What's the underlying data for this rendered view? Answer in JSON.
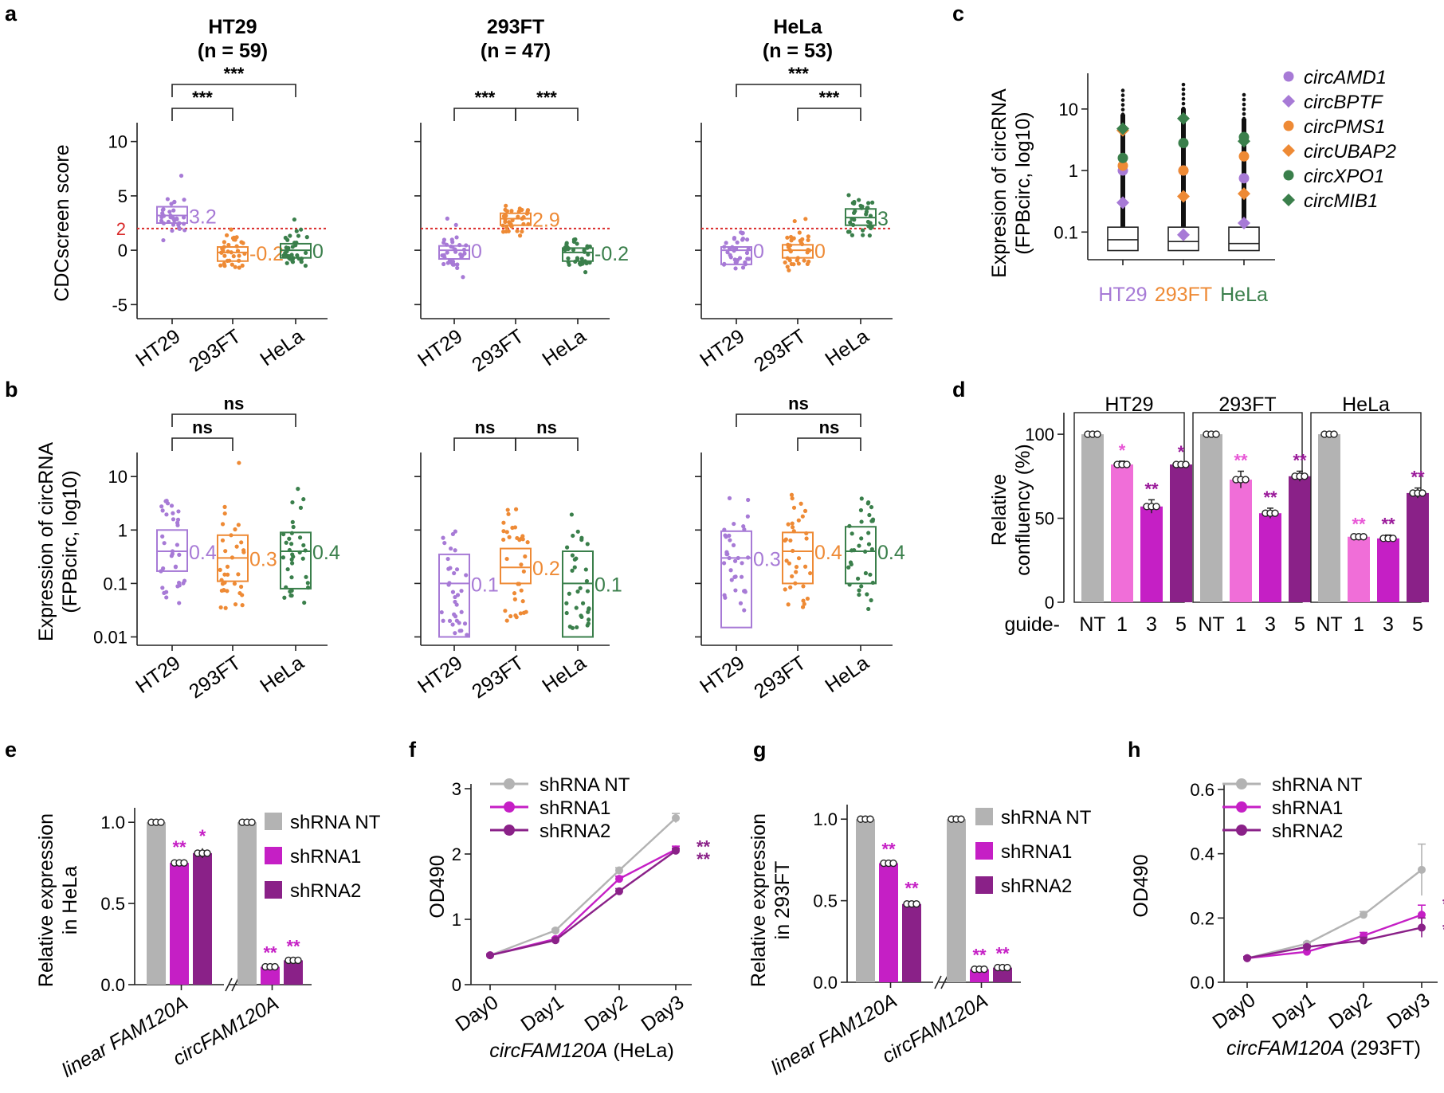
{
  "colors": {
    "HT29": "#a77ad6",
    "293FT": "#ee8a35",
    "HeLa": "#3a7f4b",
    "threshold": "#d92a2a",
    "grey": "#b3b3b3",
    "pink": "#f06ed8",
    "magenta": "#c51fc5",
    "purple": "#8a2188",
    "sig_pink": "#e857d6",
    "sig_purple": "#9a1a9a"
  },
  "panel_labels": {
    "a": "a",
    "b": "b",
    "c": "c",
    "d": "d",
    "e": "e",
    "f": "f",
    "g": "g",
    "h": "h"
  },
  "chart_data": [
    {
      "id": "a",
      "type": "box",
      "ylabel": "CDCscreen score",
      "ylim": [
        -6,
        11
      ],
      "yticks": [
        -5,
        0,
        5,
        10
      ],
      "ytick_labels": [
        "-5",
        "0",
        "5",
        "10"
      ],
      "threshold": 2,
      "threshold_label": "2",
      "categories": [
        "HT29",
        "293FT",
        "HeLa"
      ],
      "subplots": [
        {
          "title": "HT29",
          "subtitle": "(n = 59)",
          "boxes": [
            {
              "q1": 2.5,
              "median": 3.2,
              "q3": 4.0,
              "label": "3.2"
            },
            {
              "q1": -1.0,
              "median": -0.2,
              "q3": 0.3,
              "label": "-0.2"
            },
            {
              "q1": -0.7,
              "median": 0.0,
              "q3": 0.6,
              "label": "0"
            }
          ],
          "comparisons": [
            {
              "from": 0,
              "to": 1,
              "label": "***"
            },
            {
              "from": 0,
              "to": 2,
              "label": "***"
            }
          ]
        },
        {
          "title": "293FT",
          "subtitle": "(n = 47)",
          "boxes": [
            {
              "q1": -0.8,
              "median": 0.0,
              "q3": 0.4,
              "label": "0"
            },
            {
              "q1": 2.3,
              "median": 2.9,
              "q3": 3.4,
              "label": "2.9"
            },
            {
              "q1": -1.0,
              "median": -0.2,
              "q3": 0.2,
              "label": "-0.2"
            }
          ],
          "comparisons": [
            {
              "from": 0,
              "to": 1,
              "label": "***"
            },
            {
              "from": 1,
              "to": 2,
              "label": "***"
            }
          ]
        },
        {
          "title": "HeLa",
          "subtitle": "(n = 53)",
          "boxes": [
            {
              "q1": -1.3,
              "median": 0.0,
              "q3": 0.3,
              "label": "0"
            },
            {
              "q1": -0.7,
              "median": 0.0,
              "q3": 0.5,
              "label": "0"
            },
            {
              "q1": 2.3,
              "median": 3.0,
              "q3": 3.8,
              "label": "3"
            }
          ],
          "comparisons": [
            {
              "from": 0,
              "to": 2,
              "label": "***"
            },
            {
              "from": 1,
              "to": 2,
              "label": "***"
            }
          ]
        }
      ]
    },
    {
      "id": "b",
      "type": "box",
      "ylabel": "Expression of circRNA",
      "ylabel2": "(FPBcirc, log10)",
      "scale": "log10",
      "ylim": [
        0.008,
        20
      ],
      "yticks": [
        10,
        1,
        0.1,
        0.01
      ],
      "ytick_labels": [
        "10",
        "1",
        "0.1",
        "0.01"
      ],
      "categories": [
        "HT29",
        "293FT",
        "HeLa"
      ],
      "subplots": [
        {
          "boxes": [
            {
              "q1": 0.17,
              "median": 0.4,
              "q3": 1.0,
              "label": "0.4"
            },
            {
              "q1": 0.11,
              "median": 0.3,
              "q3": 0.8,
              "label": "0.3"
            },
            {
              "q1": 0.08,
              "median": 0.4,
              "q3": 0.9,
              "label": "0.4"
            }
          ],
          "comparisons": [
            {
              "from": 0,
              "to": 1,
              "label": "ns"
            },
            {
              "from": 0,
              "to": 2,
              "label": "ns"
            }
          ]
        },
        {
          "boxes": [
            {
              "q1": 0.01,
              "median": 0.1,
              "q3": 0.35,
              "label": "0.1"
            },
            {
              "q1": 0.1,
              "median": 0.2,
              "q3": 0.45,
              "label": "0.2"
            },
            {
              "q1": 0.01,
              "median": 0.1,
              "q3": 0.4,
              "label": "0.1"
            }
          ],
          "comparisons": [
            {
              "from": 0,
              "to": 1,
              "label": "ns"
            },
            {
              "from": 1,
              "to": 2,
              "label": "ns"
            }
          ]
        },
        {
          "boxes": [
            {
              "q1": 0.015,
              "median": 0.3,
              "q3": 0.95,
              "label": "0.3"
            },
            {
              "q1": 0.1,
              "median": 0.4,
              "q3": 0.9,
              "label": "0.4"
            },
            {
              "q1": 0.1,
              "median": 0.4,
              "q3": 1.15,
              "label": "0.4"
            }
          ],
          "comparisons": [
            {
              "from": 0,
              "to": 2,
              "label": "ns"
            },
            {
              "from": 1,
              "to": 2,
              "label": "ns"
            }
          ]
        }
      ]
    },
    {
      "id": "c",
      "type": "box",
      "ylabel": "Expresion of circRNA",
      "ylabel2": "(FPBcirc, log10)",
      "scale": "log10",
      "ylim": [
        0.04,
        30
      ],
      "yticks": [
        10,
        1,
        0.1
      ],
      "ytick_labels": [
        "10",
        "1",
        "0.1"
      ],
      "categories": [
        "HT29",
        "293FT",
        "HeLa"
      ],
      "boxes": [
        {
          "q1": 0.05,
          "median": 0.075,
          "q3": 0.12
        },
        {
          "q1": 0.05,
          "median": 0.07,
          "q3": 0.12
        },
        {
          "q1": 0.05,
          "median": 0.065,
          "q3": 0.12
        }
      ],
      "whisker_top": [
        20,
        25,
        17
      ],
      "legend": [
        "circAMD1",
        "circBPTF",
        "circPMS1",
        "circUBAP2",
        "circXPO1",
        "circMIB1"
      ],
      "highlights": {
        "circAMD1": [
          1.0,
          1.0,
          0.75
        ],
        "circBPTF": [
          0.3,
          0.09,
          0.14
        ],
        "circPMS1": [
          1.2,
          1.0,
          1.7
        ],
        "circUBAP2": [
          4.5,
          0.38,
          0.42
        ],
        "circXPO1": [
          1.6,
          2.8,
          3.5
        ],
        "circMIB1": [
          4.8,
          7.0,
          3.0
        ]
      }
    },
    {
      "id": "d",
      "type": "bar",
      "ylabel": "Relative",
      "ylabel2": "confluency (%)",
      "ylim": [
        0,
        110
      ],
      "yticks": [
        0,
        50,
        100
      ],
      "ytick_labels": [
        "0",
        "50",
        "100"
      ],
      "xprefix": "guide-",
      "categories": [
        "NT",
        "1",
        "3",
        "5"
      ],
      "groups": [
        {
          "title": "HT29",
          "values": [
            100,
            82,
            57,
            82
          ],
          "errors": [
            0,
            2,
            4,
            1
          ],
          "sig": [
            "",
            "*",
            "**",
            "*"
          ]
        },
        {
          "title": "293FT",
          "values": [
            100,
            73,
            53,
            75
          ],
          "errors": [
            0,
            5,
            3,
            3
          ],
          "sig": [
            "",
            "**",
            "**",
            "**"
          ]
        },
        {
          "title": "HeLa",
          "values": [
            100,
            39,
            38,
            65
          ],
          "errors": [
            0,
            1,
            2,
            3
          ],
          "sig": [
            "",
            "**",
            "**",
            "**"
          ]
        }
      ]
    },
    {
      "id": "e",
      "type": "bar",
      "ylabel": "Relative expression",
      "ylabel2": "in HeLa",
      "ylim": [
        0,
        1.05
      ],
      "yticks": [
        0,
        0.5,
        1.0
      ],
      "ytick_labels": [
        "0.0",
        "0.5",
        "1.0"
      ],
      "categories": [
        "linear FAM120A",
        "circFAM120A"
      ],
      "series": [
        {
          "name": "shRNA NT",
          "values": [
            1.0,
            1.0
          ],
          "errors": [
            0.0,
            0.0
          ],
          "sig": [
            "",
            ""
          ]
        },
        {
          "name": "shRNA1",
          "values": [
            0.75,
            0.11
          ],
          "errors": [
            0.02,
            0.01
          ],
          "sig": [
            "**",
            "**"
          ]
        },
        {
          "name": "shRNA2",
          "values": [
            0.81,
            0.15
          ],
          "errors": [
            0.03,
            0.01
          ],
          "sig": [
            "*",
            "**"
          ]
        }
      ]
    },
    {
      "id": "f",
      "type": "line",
      "ylabel": "OD490",
      "xlabel_italic": "circFAM120A",
      "xlabel_rest": " (HeLa)",
      "ylim": [
        0,
        3
      ],
      "yticks": [
        0,
        1,
        2,
        3
      ],
      "ytick_labels": [
        "0",
        "1",
        "2",
        "3"
      ],
      "x": [
        "Day0",
        "Day1",
        "Day2",
        "Day3"
      ],
      "series": [
        {
          "name": "shRNA NT",
          "values": [
            0.45,
            0.83,
            1.75,
            2.55
          ],
          "errors": [
            0.02,
            0.02,
            0.04,
            0.07
          ]
        },
        {
          "name": "shRNA1",
          "values": [
            0.45,
            0.7,
            1.62,
            2.07
          ],
          "errors": [
            0.02,
            0.02,
            0.04,
            0.05
          ]
        },
        {
          "name": "shRNA2",
          "values": [
            0.45,
            0.68,
            1.43,
            2.05
          ],
          "errors": [
            0.02,
            0.02,
            0.04,
            0.04
          ]
        }
      ],
      "end_sig": [
        "**",
        "**"
      ]
    },
    {
      "id": "g",
      "type": "bar",
      "ylabel": "Relative expression",
      "ylabel2": "in 293FT",
      "ylim": [
        0,
        1.05
      ],
      "yticks": [
        0,
        0.5,
        1.0
      ],
      "ytick_labels": [
        "0.0",
        "0.5",
        "1.0"
      ],
      "categories": [
        "linear FAM120A",
        "circFAM120A"
      ],
      "series": [
        {
          "name": "shRNA NT",
          "values": [
            1.0,
            1.0
          ],
          "errors": [
            0.0,
            0.0
          ],
          "sig": [
            "",
            ""
          ]
        },
        {
          "name": "shRNA1",
          "values": [
            0.73,
            0.08
          ],
          "errors": [
            0.01,
            0.01
          ],
          "sig": [
            "**",
            "**"
          ]
        },
        {
          "name": "shRNA2",
          "values": [
            0.48,
            0.09
          ],
          "errors": [
            0.02,
            0.01
          ],
          "sig": [
            "**",
            "**"
          ]
        }
      ]
    },
    {
      "id": "h",
      "type": "line",
      "ylabel": "OD490",
      "xlabel_italic": "circFAM120A",
      "xlabel_rest": " (293FT)",
      "ylim": [
        0,
        0.6
      ],
      "yticks": [
        0,
        0.2,
        0.4,
        0.6
      ],
      "ytick_labels": [
        "0.0",
        "0.2",
        "0.4",
        "0.6"
      ],
      "x": [
        "Day0",
        "Day1",
        "Day2",
        "Day3"
      ],
      "series": [
        {
          "name": "shRNA NT",
          "values": [
            0.075,
            0.12,
            0.21,
            0.35
          ],
          "errors": [
            0.005,
            0.005,
            0.01,
            0.08
          ]
        },
        {
          "name": "shRNA1",
          "values": [
            0.075,
            0.095,
            0.145,
            0.21
          ],
          "errors": [
            0.005,
            0.005,
            0.01,
            0.03
          ]
        },
        {
          "name": "shRNA2",
          "values": [
            0.075,
            0.11,
            0.13,
            0.17
          ],
          "errors": [
            0.005,
            0.005,
            0.01,
            0.03
          ]
        }
      ],
      "end_sig": [
        "*",
        "*"
      ]
    }
  ]
}
